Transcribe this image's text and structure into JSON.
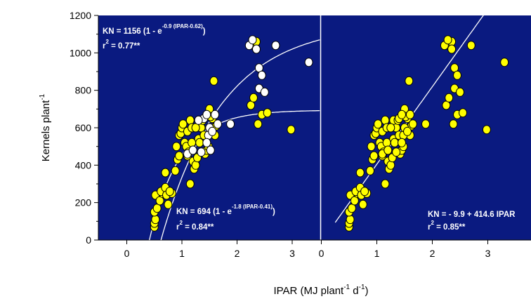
{
  "colors": {
    "panel_bg": "#0a1a80",
    "yellow_marker": "#ffff00",
    "white_marker": "#ffffff",
    "marker_edge": "#000000",
    "curve": "#ffffff",
    "axis": "#000000"
  },
  "figure": {
    "ylabel_main": "Kernels plant",
    "ylabel_sup": "-1",
    "xlabel_pre": "IPAR (MJ plant",
    "xlabel_sup1": "-1",
    "xlabel_mid": " d",
    "xlabel_sup2": "-1",
    "xlabel_post": ")"
  },
  "chart_data": [
    {
      "type": "scatter",
      "panel": "left",
      "xlim": [
        -0.5,
        3.8
      ],
      "ylim": [
        0,
        1200
      ],
      "xticks": [
        "0",
        "1",
        "2",
        "3"
      ],
      "yticks": [
        "0",
        "200",
        "400",
        "600",
        "800",
        "1000",
        "1200"
      ],
      "annotations": {
        "upper": {
          "line1_a": "KN = 1156 (1 - e",
          "line1_sup": "-0.9 (IPAR-0.62)",
          "line1_b": ")",
          "line2_a": "r",
          "line2_sup": "2",
          "line2_b": " = 0.77**"
        },
        "lower": {
          "line1_a": "KN = 694 (1 - e",
          "line1_sup": "-1.8 (IPAR-0.41)",
          "line1_b": ")",
          "line2_a": "r",
          "line2_sup": "2",
          "line2_b": " = 0.84**"
        }
      },
      "fits": [
        {
          "model": "exponential",
          "a": 1156,
          "b": 0.9,
          "c": 0.62,
          "x_range": [
            0.62,
            3.5
          ]
        },
        {
          "model": "exponential",
          "a": 694,
          "b": 1.8,
          "c": 0.41,
          "x_range": [
            0.41,
            3.5
          ]
        }
      ],
      "series": [
        {
          "marker": "yellow",
          "points": [
            [
              0.5,
              70
            ],
            [
              0.5,
              90
            ],
            [
              0.52,
              110
            ],
            [
              0.5,
              150
            ],
            [
              0.55,
              170
            ],
            [
              0.52,
              240
            ],
            [
              0.6,
              210
            ],
            [
              0.65,
              250
            ],
            [
              0.62,
              260
            ],
            [
              0.7,
              280
            ],
            [
              0.75,
              190
            ],
            [
              0.72,
              240
            ],
            [
              0.82,
              250
            ],
            [
              0.78,
              260
            ],
            [
              0.7,
              360
            ],
            [
              0.88,
              370
            ],
            [
              0.92,
              430
            ],
            [
              0.95,
              450
            ],
            [
              0.9,
              500
            ],
            [
              0.95,
              560
            ],
            [
              0.98,
              570
            ],
            [
              1.0,
              600
            ],
            [
              1.02,
              620
            ],
            [
              1.05,
              520
            ],
            [
              1.08,
              500
            ],
            [
              1.1,
              450
            ],
            [
              1.12,
              470
            ],
            [
              1.1,
              580
            ],
            [
              1.15,
              640
            ],
            [
              1.18,
              600
            ],
            [
              1.15,
              300
            ],
            [
              1.2,
              420
            ],
            [
              1.22,
              380
            ],
            [
              1.25,
              400
            ],
            [
              1.28,
              440
            ],
            [
              1.3,
              540
            ],
            [
              1.32,
              520
            ],
            [
              1.35,
              600
            ],
            [
              1.3,
              640
            ],
            [
              1.38,
              640
            ],
            [
              1.4,
              560
            ],
            [
              1.42,
              460
            ],
            [
              1.45,
              480
            ],
            [
              1.48,
              500
            ],
            [
              1.5,
              700
            ],
            [
              1.55,
              650
            ],
            [
              1.58,
              850
            ],
            [
              1.6,
              560
            ],
            [
              1.62,
              610
            ],
            [
              1.52,
              660
            ],
            [
              2.25,
              720
            ],
            [
              2.3,
              1040
            ],
            [
              2.35,
              1060
            ],
            [
              2.3,
              760
            ],
            [
              2.38,
              620
            ],
            [
              2.45,
              670
            ],
            [
              2.55,
              680
            ],
            [
              2.98,
              590
            ],
            [
              1.25,
              600
            ],
            [
              1.18,
              520
            ]
          ]
        },
        {
          "marker": "white",
          "points": [
            [
              1.1,
              460
            ],
            [
              1.2,
              480
            ],
            [
              1.35,
              470
            ],
            [
              1.4,
              650
            ],
            [
              1.45,
              670
            ],
            [
              1.48,
              560
            ],
            [
              1.5,
              600
            ],
            [
              1.55,
              580
            ],
            [
              1.6,
              670
            ],
            [
              1.65,
              620
            ],
            [
              1.45,
              520
            ],
            [
              1.88,
              620
            ],
            [
              2.22,
              1040
            ],
            [
              2.28,
              1070
            ],
            [
              2.35,
              1020
            ],
            [
              2.4,
              920
            ],
            [
              2.45,
              880
            ],
            [
              2.4,
              810
            ],
            [
              2.5,
              790
            ],
            [
              2.7,
              1040
            ],
            [
              3.3,
              950
            ],
            [
              1.3,
              640
            ],
            [
              1.52,
              480
            ]
          ]
        }
      ]
    },
    {
      "type": "scatter",
      "panel": "right",
      "xlim": [
        0,
        3.8
      ],
      "ylim": [
        0,
        1200
      ],
      "xticks": [
        "0",
        "1",
        "2",
        "3"
      ],
      "annotation": {
        "line1": "KN = - 9.9 + 414.6 IPAR",
        "line2_a": "r",
        "line2_sup": "2",
        "line2_b": " = 0.85**"
      },
      "fits": [
        {
          "model": "linear",
          "intercept": -9.9,
          "slope": 414.6,
          "x_range": [
            0.25,
            2.95
          ]
        }
      ],
      "series": [
        {
          "marker": "yellow",
          "points": [
            [
              0.5,
              70
            ],
            [
              0.5,
              90
            ],
            [
              0.52,
              110
            ],
            [
              0.5,
              150
            ],
            [
              0.55,
              170
            ],
            [
              0.52,
              240
            ],
            [
              0.6,
              210
            ],
            [
              0.65,
              250
            ],
            [
              0.62,
              260
            ],
            [
              0.7,
              280
            ],
            [
              0.75,
              190
            ],
            [
              0.72,
              240
            ],
            [
              0.82,
              250
            ],
            [
              0.78,
              260
            ],
            [
              0.7,
              360
            ],
            [
              0.88,
              370
            ],
            [
              0.92,
              430
            ],
            [
              0.95,
              450
            ],
            [
              0.9,
              500
            ],
            [
              0.95,
              560
            ],
            [
              0.98,
              570
            ],
            [
              1.0,
              600
            ],
            [
              1.02,
              620
            ],
            [
              1.05,
              520
            ],
            [
              1.08,
              500
            ],
            [
              1.1,
              450
            ],
            [
              1.12,
              470
            ],
            [
              1.1,
              580
            ],
            [
              1.15,
              640
            ],
            [
              1.18,
              600
            ],
            [
              1.15,
              300
            ],
            [
              1.2,
              420
            ],
            [
              1.22,
              380
            ],
            [
              1.25,
              400
            ],
            [
              1.28,
              440
            ],
            [
              1.3,
              540
            ],
            [
              1.32,
              520
            ],
            [
              1.35,
              600
            ],
            [
              1.3,
              640
            ],
            [
              1.38,
              640
            ],
            [
              1.4,
              560
            ],
            [
              1.42,
              460
            ],
            [
              1.45,
              480
            ],
            [
              1.48,
              500
            ],
            [
              1.5,
              700
            ],
            [
              1.55,
              650
            ],
            [
              1.58,
              850
            ],
            [
              1.6,
              560
            ],
            [
              1.62,
              610
            ],
            [
              1.52,
              660
            ],
            [
              2.25,
              720
            ],
            [
              2.3,
              1040
            ],
            [
              2.35,
              1060
            ],
            [
              2.3,
              760
            ],
            [
              2.38,
              620
            ],
            [
              2.45,
              670
            ],
            [
              2.55,
              680
            ],
            [
              2.98,
              590
            ],
            [
              1.25,
              600
            ],
            [
              1.18,
              520
            ],
            [
              1.1,
              460
            ],
            [
              1.2,
              480
            ],
            [
              1.35,
              470
            ],
            [
              1.4,
              650
            ],
            [
              1.45,
              670
            ],
            [
              1.48,
              560
            ],
            [
              1.5,
              600
            ],
            [
              1.55,
              580
            ],
            [
              1.6,
              670
            ],
            [
              1.65,
              620
            ],
            [
              1.45,
              520
            ],
            [
              1.88,
              620
            ],
            [
              2.22,
              1040
            ],
            [
              2.28,
              1070
            ],
            [
              2.35,
              1020
            ],
            [
              2.4,
              920
            ],
            [
              2.45,
              880
            ],
            [
              2.4,
              810
            ],
            [
              2.5,
              790
            ],
            [
              2.7,
              1040
            ],
            [
              3.3,
              950
            ]
          ]
        }
      ]
    }
  ]
}
